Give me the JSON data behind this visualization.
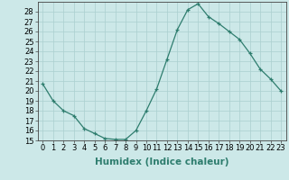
{
  "x": [
    0,
    1,
    2,
    3,
    4,
    5,
    6,
    7,
    8,
    9,
    10,
    11,
    12,
    13,
    14,
    15,
    16,
    17,
    18,
    19,
    20,
    21,
    22,
    23
  ],
  "y": [
    20.7,
    19.0,
    18.0,
    17.5,
    16.2,
    15.7,
    15.2,
    15.1,
    15.1,
    16.0,
    18.0,
    20.2,
    23.2,
    26.2,
    28.2,
    28.8,
    27.5,
    26.8,
    26.0,
    25.2,
    23.8,
    22.2,
    21.2,
    20.0
  ],
  "line_color": "#2e7d6e",
  "marker": "+",
  "marker_color": "#2e7d6e",
  "bg_color": "#cce8e8",
  "grid_color": "#aacfcf",
  "xlabel": "Humidex (Indice chaleur)",
  "ylabel_ticks": [
    15,
    16,
    17,
    18,
    19,
    20,
    21,
    22,
    23,
    24,
    25,
    26,
    27,
    28
  ],
  "xlim": [
    -0.5,
    23.5
  ],
  "ylim": [
    15,
    29
  ],
  "tick_fontsize": 6,
  "label_fontsize": 7.5
}
